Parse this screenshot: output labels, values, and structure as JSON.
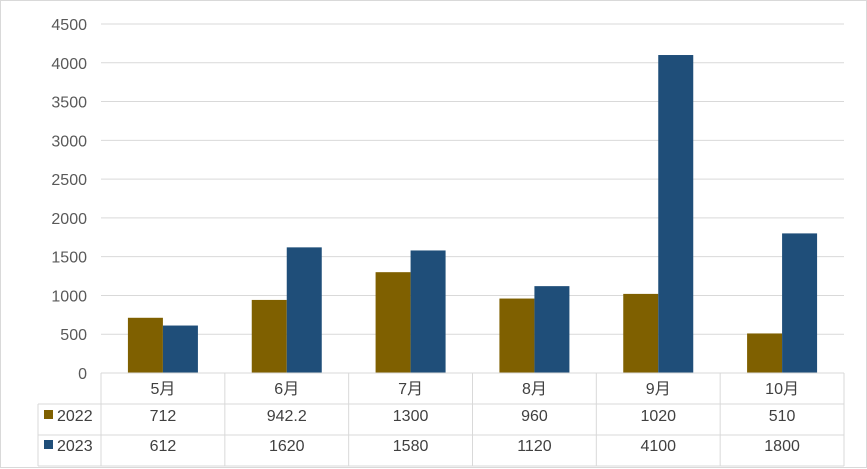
{
  "chart_data": {
    "type": "bar",
    "categories": [
      "5月",
      "6月",
      "7月",
      "8月",
      "9月",
      "10月"
    ],
    "series": [
      {
        "name": "2022",
        "color": "#7f6000",
        "values": [
          712,
          942.2,
          1300,
          960,
          1020,
          510
        ],
        "labels": [
          "712",
          "942.2",
          "1300",
          "960",
          "1020",
          "510"
        ]
      },
      {
        "name": "2023",
        "color": "#1f4e79",
        "values": [
          612,
          1620,
          1580,
          1120,
          4100,
          1800
        ],
        "labels": [
          "612",
          "1620",
          "1580",
          "1120",
          "4100",
          "1800"
        ]
      }
    ],
    "ylim": [
      0,
      4500
    ],
    "yticks": [
      "0",
      "500",
      "1000",
      "1500",
      "2000",
      "2500",
      "3000",
      "3500",
      "4000",
      "4500"
    ],
    "grid": true,
    "legend": "data-table",
    "title": "",
    "xlabel": "",
    "ylabel": ""
  }
}
